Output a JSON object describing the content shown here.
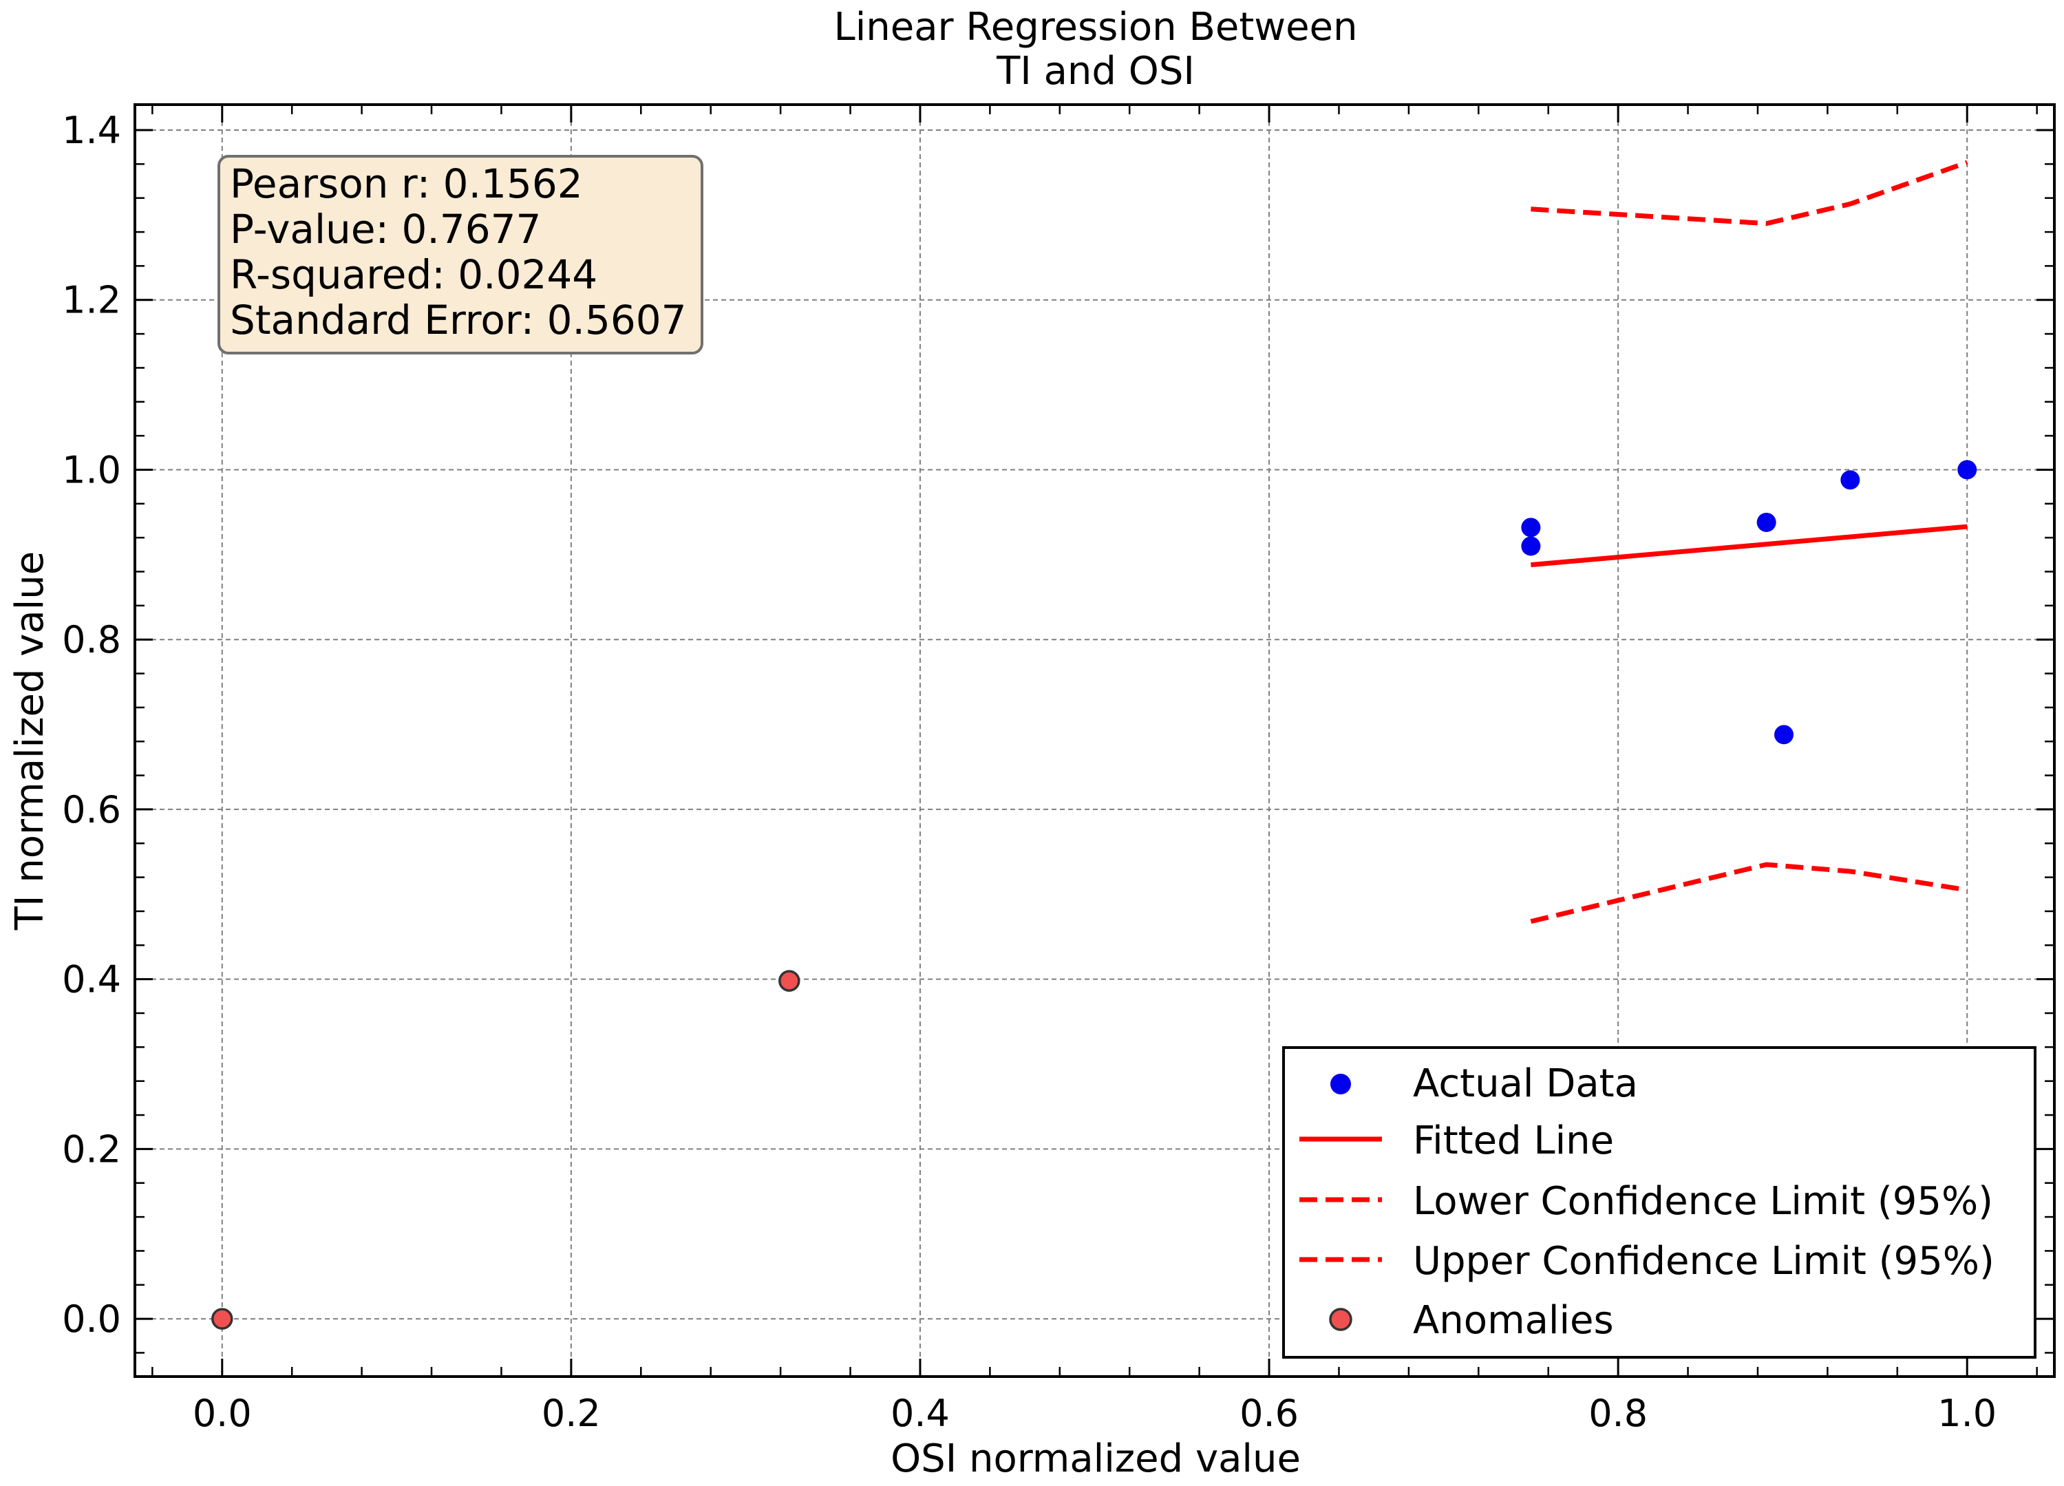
{
  "chart_data": {
    "type": "scatter",
    "title_lines": [
      "Linear Regression Between",
      "TI and OSI"
    ],
    "xlabel": "OSI normalized value",
    "ylabel": "TI normalized value",
    "xlim": [
      -0.05,
      1.05
    ],
    "ylim": [
      -0.068,
      1.43
    ],
    "xticks": [
      0.0,
      0.2,
      0.4,
      0.6,
      0.8,
      1.0
    ],
    "xtick_labels": [
      "0.0",
      "0.2",
      "0.4",
      "0.6",
      "0.8",
      "1.0"
    ],
    "yticks": [
      0.0,
      0.2,
      0.4,
      0.6,
      0.8,
      1.0,
      1.2,
      1.4
    ],
    "ytick_labels": [
      "0.0",
      "0.2",
      "0.4",
      "0.6",
      "0.8",
      "1.0",
      "1.2",
      "1.4"
    ],
    "grid": true,
    "legend_position": "bottom-right",
    "stats_box": [
      "Pearson r: 0.1562",
      "P-value: 0.7677",
      "R-squared: 0.0244",
      "Standard Error: 0.5607"
    ],
    "series": [
      {
        "name": "Actual Data",
        "kind": "scatter",
        "color": "#0000ee",
        "points": [
          [
            0.75,
            0.932
          ],
          [
            0.75,
            0.91
          ],
          [
            0.885,
            0.938
          ],
          [
            0.933,
            0.988
          ],
          [
            1.0,
            1.0
          ],
          [
            0.895,
            0.688
          ]
        ]
      },
      {
        "name": "Fitted Line",
        "kind": "line",
        "color": "#ff0000",
        "points": [
          [
            0.75,
            0.888
          ],
          [
            1.0,
            0.933
          ]
        ]
      },
      {
        "name": "Lower Confidence Limit (95%)",
        "kind": "dashed",
        "color": "#ff0000",
        "points": [
          [
            0.75,
            0.468
          ],
          [
            0.885,
            0.535
          ],
          [
            0.933,
            0.527
          ],
          [
            1.0,
            0.505
          ]
        ]
      },
      {
        "name": "Upper Confidence Limit (95%)",
        "kind": "dashed",
        "color": "#ff0000",
        "points": [
          [
            0.75,
            1.307
          ],
          [
            0.885,
            1.29
          ],
          [
            0.933,
            1.313
          ],
          [
            1.0,
            1.362
          ]
        ]
      },
      {
        "name": "Anomalies",
        "kind": "scatter-outlined",
        "color": "#f05050",
        "points": [
          [
            0.0,
            0.0
          ],
          [
            0.325,
            0.398
          ]
        ]
      }
    ]
  }
}
